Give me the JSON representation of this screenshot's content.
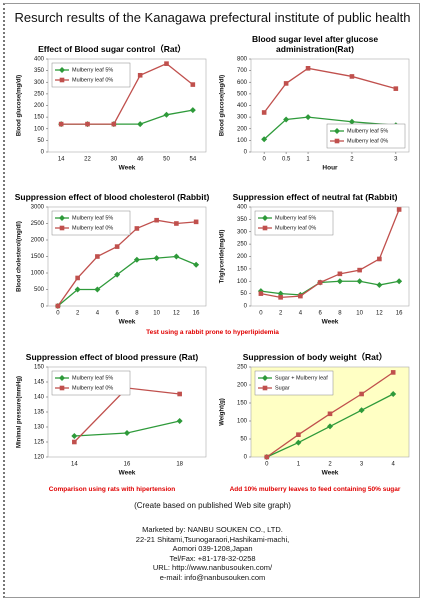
{
  "title": "Resurch results of the Kanagawa prefectural institute of public health",
  "chart_data": [
    {
      "type": "line",
      "title": "Effect of Blood sugar control（Rat）",
      "x_label": "Week",
      "y_label": "Blood glucose(mg/dl)",
      "categories": [
        "14",
        "22",
        "30",
        "46",
        "50",
        "54"
      ],
      "series": [
        {
          "name": "Mulberry leaf 5%",
          "color": "#2e9a3a",
          "marker": "diamond",
          "values": [
            120,
            120,
            120,
            120,
            160,
            180
          ]
        },
        {
          "name": "Mulberry leaf 0%",
          "color": "#c0504d",
          "marker": "square",
          "values": [
            120,
            120,
            120,
            330,
            380,
            290
          ]
        }
      ],
      "ylim": [
        0,
        400
      ],
      "yticks": [
        0,
        50,
        100,
        150,
        200,
        250,
        300,
        350,
        400
      ],
      "legend": "upper left"
    },
    {
      "type": "line",
      "title": "Blood sugar level after glucose administration(Rat)",
      "x_label": "Hour",
      "y_label": "Blood glucose(mg/dl)",
      "x": [
        0,
        0.5,
        1,
        2,
        3
      ],
      "xlim": [
        -0.3,
        3.3
      ],
      "xticks": [
        0,
        0.5,
        1,
        2,
        3
      ],
      "series": [
        {
          "name": "Mulberry leaf 5%",
          "color": "#2e9a3a",
          "marker": "diamond",
          "values": [
            110,
            280,
            300,
            260,
            230
          ]
        },
        {
          "name": "Mulberry leaf 0%",
          "color": "#c0504d",
          "marker": "square",
          "values": [
            340,
            590,
            720,
            650,
            545
          ]
        }
      ],
      "ylim": [
        0,
        800
      ],
      "yticks": [
        0,
        100,
        200,
        300,
        400,
        500,
        600,
        700,
        800
      ],
      "legend": "lower right"
    },
    {
      "type": "line",
      "title": "Suppression effect of blood cholesterol (Rabbit)",
      "x_label": "Week",
      "y_label": "Blood cholesterol(mg/dl)",
      "categories": [
        "0",
        "2",
        "4",
        "6",
        "8",
        "10",
        "12",
        "16"
      ],
      "series": [
        {
          "name": "Mulberry leaf 5%",
          "color": "#2e9a3a",
          "marker": "diamond",
          "values": [
            0,
            500,
            500,
            950,
            1400,
            1450,
            1500,
            1250
          ]
        },
        {
          "name": "Mulberry leaf 0%",
          "color": "#c0504d",
          "marker": "square",
          "values": [
            0,
            850,
            1500,
            1800,
            2350,
            2600,
            2500,
            2550
          ]
        }
      ],
      "ylim": [
        0,
        3000
      ],
      "yticks": [
        0,
        500,
        1000,
        1500,
        2000,
        2500,
        3000
      ],
      "legend": "upper left"
    },
    {
      "type": "line",
      "title": "Suppression effect of neutral fat (Rabbit)",
      "x_label": "Week",
      "y_label": "Triglyceride(mg/dl)",
      "categories": [
        "0",
        "2",
        "4",
        "6",
        "8",
        "10",
        "12",
        "16"
      ],
      "series": [
        {
          "name": "Mulberry leaf 5%",
          "color": "#2e9a3a",
          "marker": "diamond",
          "values": [
            60,
            50,
            45,
            95,
            100,
            100,
            85,
            100
          ]
        },
        {
          "name": "Mulberry leaf 0%",
          "color": "#c0504d",
          "marker": "square",
          "values": [
            50,
            35,
            40,
            95,
            130,
            145,
            190,
            390
          ]
        }
      ],
      "ylim": [
        0,
        400
      ],
      "yticks": [
        0,
        50,
        100,
        150,
        200,
        250,
        300,
        350,
        400
      ],
      "legend": "upper left"
    },
    {
      "type": "line",
      "title": "Suppression effect of blood pressure (Rat)",
      "x_label": "Week",
      "y_label": "Minimal pressure(mmHg)",
      "categories": [
        "14",
        "16",
        "18"
      ],
      "series": [
        {
          "name": "Mulberry leaf 5%",
          "color": "#2e9a3a",
          "marker": "diamond",
          "values": [
            127,
            128,
            132
          ]
        },
        {
          "name": "Mulberry leaf 0%",
          "color": "#c0504d",
          "marker": "square",
          "values": [
            125,
            143,
            141
          ]
        }
      ],
      "ylim": [
        120,
        150
      ],
      "yticks": [
        120,
        125,
        130,
        135,
        140,
        145,
        150
      ],
      "legend": "upper left",
      "annotation": "Comparison using rats with hipertension"
    },
    {
      "type": "line",
      "title": "Suppression of body weight（Rat）",
      "x_label": "Week",
      "y_label": "Weight(g)",
      "categories": [
        "0",
        "1",
        "2",
        "3",
        "4"
      ],
      "series": [
        {
          "name": "Sugar + Mulberry leaf",
          "color": "#2e9a3a",
          "marker": "diamond",
          "values": [
            0,
            40,
            85,
            130,
            175
          ]
        },
        {
          "name": "Sugar",
          "color": "#c0504d",
          "marker": "square",
          "values": [
            0,
            62,
            120,
            175,
            235
          ]
        }
      ],
      "ylim": [
        0,
        250
      ],
      "yticks": [
        0,
        50,
        100,
        150,
        200,
        250
      ],
      "legend": "upper left",
      "plot_background": "#ffffc4",
      "annotation": "Add 10% mulberry leaves to feed containing 50% sugar"
    }
  ],
  "note": "Test using a rabbit prone to hyperlipidemia",
  "footer": {
    "source": "(Create based on published Web site graph)",
    "lines": [
      "Marketed by: NANBU SOUKEN CO., LTD.",
      "22-21 Shitami,Tsunogaraori,Hashikami-machi,",
      "Aomori 039-1208,Japan",
      "Tel/Fax: +81-178-32-0258",
      "URL: http://www.nanbusouken.com/",
      "e-mail: info@nanbusouken.com"
    ]
  }
}
